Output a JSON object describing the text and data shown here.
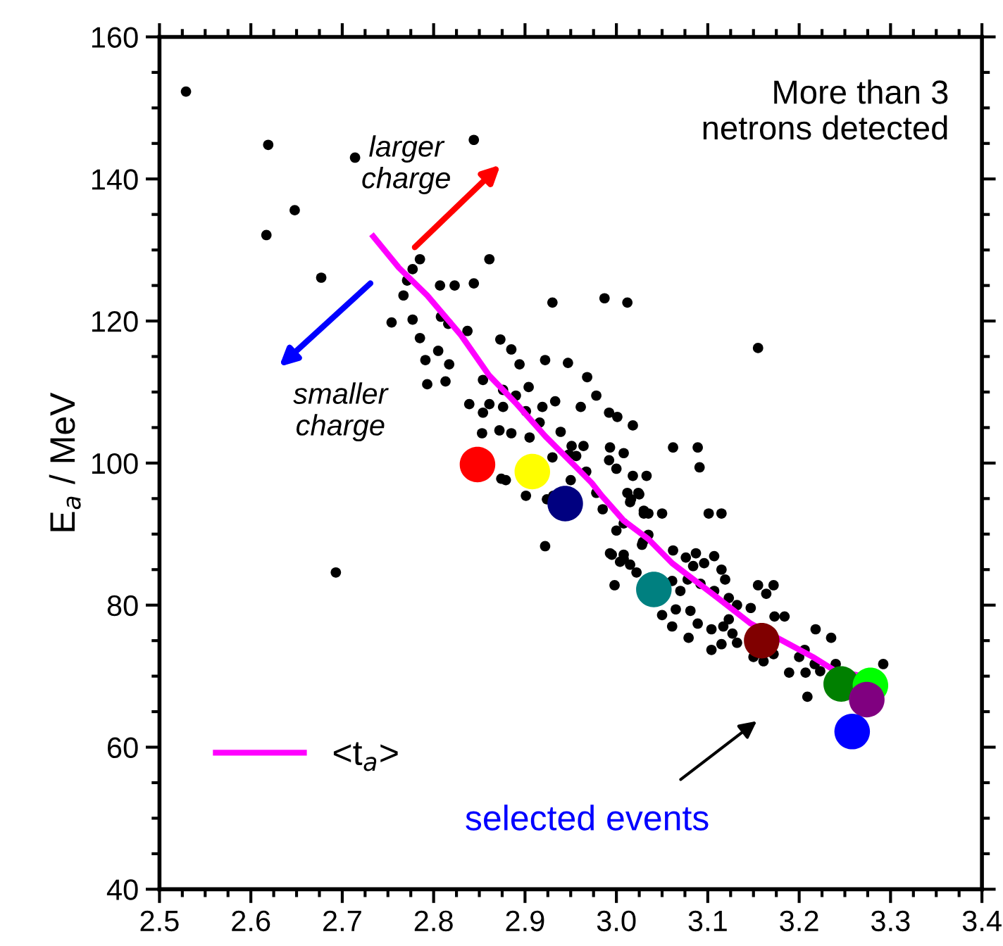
{
  "chart_data": {
    "type": "scatter",
    "ylabel": "E$_{a}$ / MeV",
    "xlim": [
      2.5,
      3.4
    ],
    "xticks": [
      {
        "value": 2.5,
        "label": "2.5"
      },
      {
        "value": 2.6,
        "label": "2.6"
      },
      {
        "value": 2.7,
        "label": "2.7"
      },
      {
        "value": 2.8,
        "label": "2.8"
      },
      {
        "value": 2.9,
        "label": "2.9"
      },
      {
        "value": 3.0,
        "label": "3.0"
      },
      {
        "value": 3.1,
        "label": "3.1"
      },
      {
        "value": 3.2,
        "label": "3.2"
      },
      {
        "value": 3.3,
        "label": "3.3"
      },
      {
        "value": 3.4,
        "label": "3.4"
      }
    ],
    "ylim": [
      40,
      160
    ],
    "yticks": [
      40,
      60,
      80,
      100,
      120,
      140,
      160
    ],
    "grid": false,
    "legend": "bottom left",
    "annotations": [
      "More than 3\nnetrons detected",
      "larger\ncharge",
      "smaller\ncharge",
      "selected events"
    ],
    "series": [
      {
        "color": "#000000",
        "marker": "circle",
        "x": [
          2.529,
          2.619,
          2.714,
          2.844,
          2.648,
          2.617,
          2.677,
          2.785,
          2.777,
          2.861,
          2.754,
          2.767,
          2.771,
          2.777,
          2.807,
          2.823,
          2.844,
          2.785,
          2.805,
          2.817,
          2.791,
          2.813,
          2.793,
          2.837,
          2.873,
          2.839,
          2.854,
          2.861,
          2.854,
          2.693,
          2.93,
          2.987,
          3.012,
          2.808,
          2.816,
          2.885,
          2.894,
          2.922,
          2.947,
          2.968,
          2.978,
          2.992,
          3.001,
          3.018,
          2.876,
          2.89,
          2.904,
          2.876,
          2.901,
          2.919,
          2.933,
          2.961,
          2.853,
          2.872,
          2.885,
          2.905,
          2.916,
          2.939,
          2.951,
          2.948,
          2.956,
          2.964,
          2.93,
          2.993,
          3.008,
          2.992,
          3.0,
          2.967,
          2.95,
          2.874,
          2.879,
          2.901,
          2.924,
          2.978,
          3.012,
          3.024,
          3.015,
          3.0,
          2.993,
          3.008,
          2.922,
          3.029,
          3.03,
          3.155,
          3.062,
          3.089,
          3.091,
          3.018,
          3.033,
          2.931,
          2.985,
          3.016,
          3.025,
          3.03,
          3.035,
          3.05,
          3.101,
          3.115,
          3.008,
          3.035,
          3.028,
          2.995,
          3.008,
          3.004,
          3.015,
          3.022,
          2.998,
          3.062,
          3.076,
          3.087,
          3.107,
          3.084,
          3.096,
          3.115,
          3.119,
          3.061,
          3.078,
          3.092,
          3.07,
          3.107,
          3.123,
          3.132,
          3.147,
          3.155,
          3.172,
          3.164,
          3.173,
          3.184,
          3.05,
          3.065,
          3.081,
          3.061,
          3.089,
          3.104,
          3.117,
          3.123,
          3.127,
          3.132,
          3.079,
          3.115,
          3.104,
          3.15,
          3.161,
          3.172,
          3.189,
          3.207,
          3.2,
          3.206,
          3.218,
          3.235,
          3.217,
          3.223,
          3.24,
          3.209,
          3.292
        ],
        "values": [
          152.3,
          144.8,
          143.0,
          145.5,
          135.6,
          132.1,
          126.1,
          128.7,
          127.3,
          128.7,
          119.8,
          123.6,
          125.7,
          120.2,
          125.0,
          125.0,
          125.3,
          117.6,
          115.8,
          113.9,
          114.5,
          111.5,
          111.1,
          118.6,
          117.4,
          108.3,
          107.1,
          108.3,
          111.7,
          84.6,
          122.6,
          123.2,
          122.6,
          120.6,
          119.6,
          116.0,
          113.9,
          114.5,
          114.1,
          112.1,
          109.5,
          107.1,
          106.5,
          105.3,
          110.3,
          109.5,
          110.7,
          107.9,
          107.3,
          107.9,
          108.7,
          107.9,
          104.2,
          104.6,
          104.2,
          103.6,
          105.7,
          104.4,
          102.4,
          101.2,
          101.0,
          102.4,
          100.8,
          102.2,
          101.4,
          100.4,
          99.2,
          98.8,
          97.6,
          97.8,
          97.6,
          95.4,
          94.9,
          95.8,
          95.8,
          95.8,
          94.5,
          90.5,
          87.3,
          86.5,
          88.3,
          88.9,
          93.3,
          116.2,
          102.2,
          102.2,
          99.4,
          98.2,
          98.2,
          95.4,
          93.5,
          94.9,
          95.6,
          92.9,
          92.9,
          92.9,
          92.9,
          92.9,
          91.5,
          89.9,
          88.5,
          87.1,
          87.1,
          86.1,
          85.7,
          84.6,
          82.8,
          87.7,
          86.7,
          87.3,
          86.9,
          85.5,
          85.9,
          85.0,
          83.6,
          83.4,
          83.6,
          83.0,
          82.0,
          82.0,
          81.0,
          80.0,
          79.6,
          82.8,
          82.8,
          81.6,
          78.4,
          78.4,
          78.6,
          79.4,
          79.2,
          77.0,
          77.4,
          76.6,
          77.0,
          78.0,
          76.0,
          74.7,
          75.4,
          74.5,
          73.7,
          72.7,
          72.1,
          73.1,
          70.5,
          70.5,
          72.7,
          73.7,
          76.6,
          75.4,
          71.7,
          70.7,
          71.7,
          67.1,
          71.7
        ]
      },
      {
        "type": "line",
        "name": "<t$_{a}$>",
        "color": "#ff00ff",
        "line_style": "solid",
        "x": [
          2.734,
          2.762,
          2.793,
          2.83,
          2.861,
          2.891,
          2.922,
          2.953,
          2.973,
          2.984,
          3.008,
          3.035,
          3.061,
          3.107,
          3.147,
          3.189,
          3.215,
          3.24,
          3.266
        ],
        "values": [
          131.9,
          127.5,
          123.6,
          118.0,
          112.3,
          108.3,
          103.8,
          99.8,
          97.2,
          95.4,
          91.9,
          89.3,
          85.9,
          81.4,
          77.4,
          74.5,
          72.7,
          70.7,
          70.1
        ]
      },
      {
        "type": "bubble",
        "color": "#ff0000",
        "x": [
          2.848
        ],
        "values": [
          99.8
        ],
        "sizes": [
          1
        ]
      },
      {
        "type": "bubble",
        "color": "#ffff00",
        "x": [
          2.908
        ],
        "values": [
          98.8
        ],
        "sizes": [
          1
        ]
      },
      {
        "type": "bubble",
        "color": "#000080",
        "x": [
          2.944
        ],
        "values": [
          94.3
        ],
        "sizes": [
          1
        ]
      },
      {
        "type": "bubble",
        "color": "#008080",
        "x": [
          3.041
        ],
        "values": [
          82.2
        ],
        "sizes": [
          1
        ]
      },
      {
        "type": "bubble",
        "color": "#800000",
        "x": [
          3.159
        ],
        "values": [
          75.0
        ],
        "sizes": [
          1
        ]
      },
      {
        "type": "bubble",
        "color": "#008000",
        "x": [
          3.246
        ],
        "values": [
          68.9
        ],
        "sizes": [
          1
        ]
      },
      {
        "type": "bubble",
        "color": "#00ff00",
        "x": [
          3.278
        ],
        "values": [
          68.7
        ],
        "sizes": [
          1
        ]
      },
      {
        "type": "bubble",
        "color": "#800080",
        "x": [
          3.274
        ],
        "values": [
          66.7
        ],
        "sizes": [
          1
        ]
      },
      {
        "type": "bubble",
        "color": "#0000ff",
        "x": [
          3.258
        ],
        "values": [
          62.2
        ],
        "sizes": [
          1
        ]
      }
    ]
  }
}
